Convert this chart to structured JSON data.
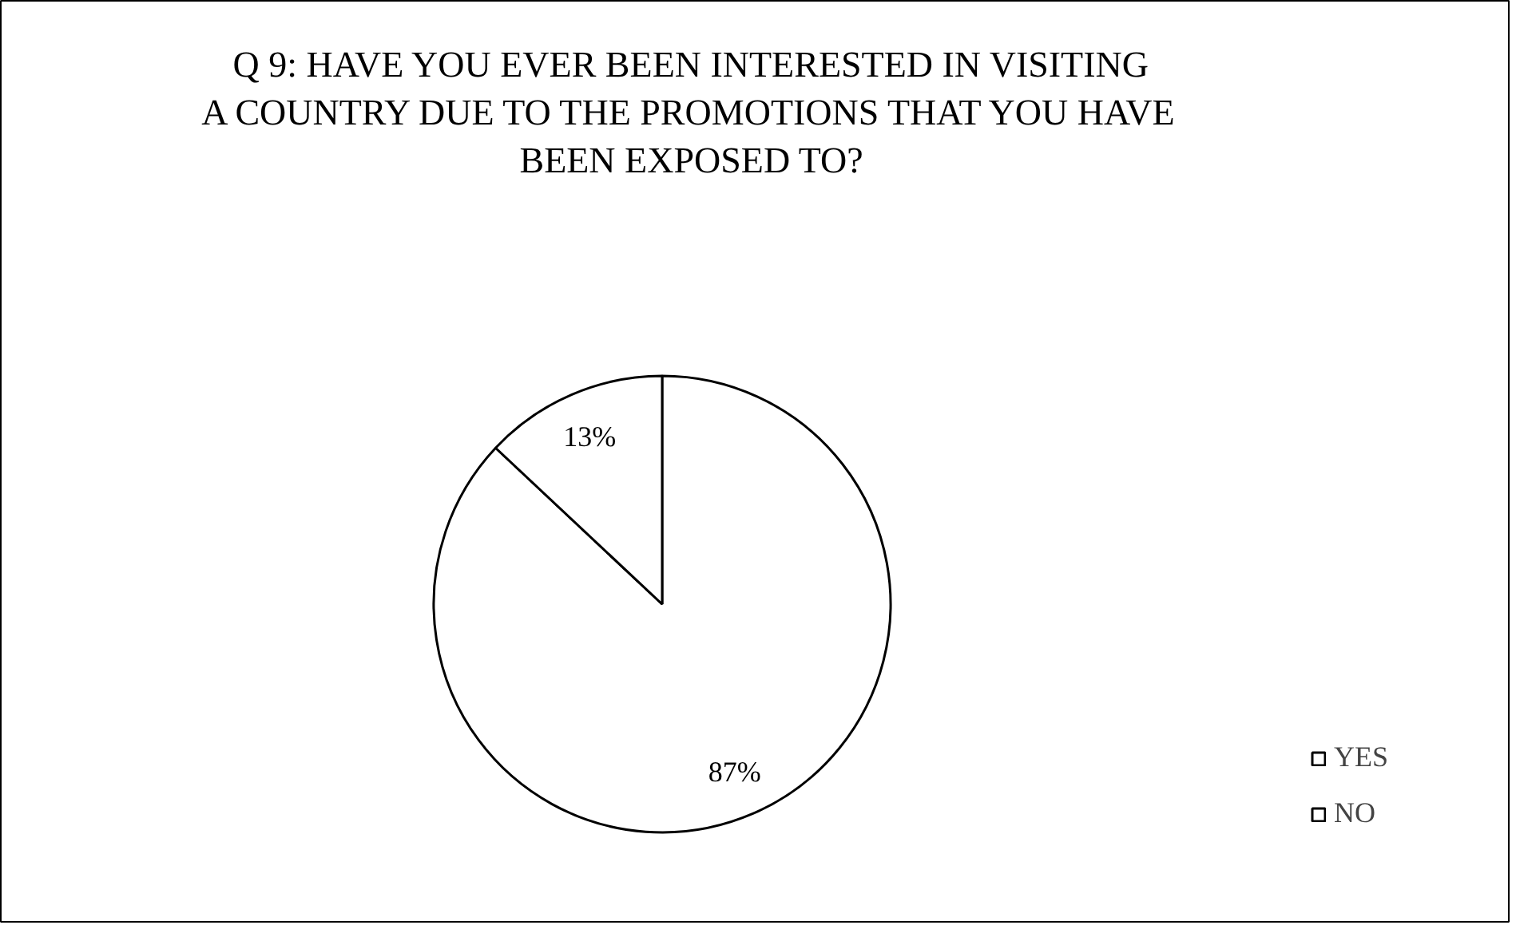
{
  "chart_data": {
    "type": "pie",
    "title": "Q 9: HAVE YOU EVER BEEN INTERESTED IN VISITING A COUNTRY DUE TO THE PROMOTIONS THAT YOU HAVE BEEN EXPOSED TO?",
    "categories": [
      "YES",
      "NO"
    ],
    "values": [
      87,
      13
    ],
    "colors": [
      "#ffffff",
      "#ffffff"
    ],
    "value_labels": [
      "87%",
      "13%"
    ],
    "legend": "right"
  }
}
